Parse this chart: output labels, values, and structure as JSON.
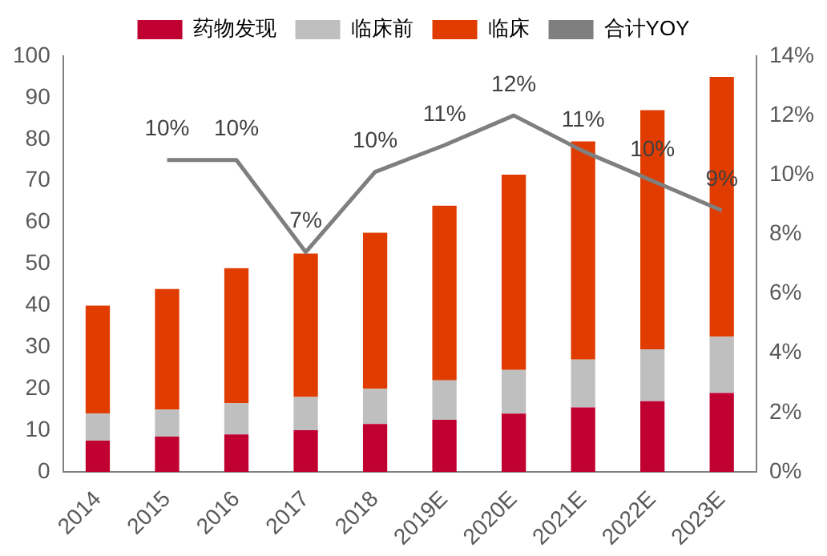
{
  "chart_data": {
    "type": "bar",
    "stacked": true,
    "categories": [
      "2014",
      "2015",
      "2016",
      "2017",
      "2018",
      "2019E",
      "2020E",
      "2021E",
      "2022E",
      "2023E"
    ],
    "series": [
      {
        "name": "药物发现",
        "color": "#c00030",
        "values": [
          7.5,
          8.5,
          9,
          10,
          11.5,
          12.5,
          14,
          15.5,
          17,
          19
        ]
      },
      {
        "name": "临床前",
        "color": "#bfbfbf",
        "values": [
          6.5,
          6.5,
          7.5,
          8,
          8.5,
          9.5,
          10.5,
          11.5,
          12.5,
          13.5
        ]
      },
      {
        "name": "临床",
        "color": "#e03c00",
        "values": [
          26,
          29,
          32.5,
          34.5,
          37.5,
          42,
          47,
          52.5,
          57.5,
          62.5
        ]
      },
      {
        "name": "合计YOY",
        "type": "line",
        "axis": "y2",
        "color": "#7f7f7f",
        "values": [
          null,
          10.5,
          10.5,
          7.4,
          10.1,
          11,
          12,
          10.8,
          9.8,
          8.8
        ],
        "value_labels": [
          null,
          "10%",
          "10%",
          "7%",
          "10%",
          "11%",
          "12%",
          "11%",
          "10%",
          "9%"
        ]
      }
    ],
    "ylim": [
      0,
      100
    ],
    "yticks": [
      0,
      10,
      20,
      30,
      40,
      50,
      60,
      70,
      80,
      90,
      100
    ],
    "y2lim": [
      0,
      14
    ],
    "y2ticks": [
      {
        "value": 0,
        "label": "0%"
      },
      {
        "value": 2,
        "label": "2%"
      },
      {
        "value": 4,
        "label": "4%"
      },
      {
        "value": 6,
        "label": "6%"
      },
      {
        "value": 8,
        "label": "8%"
      },
      {
        "value": 10,
        "label": "10%"
      },
      {
        "value": 12,
        "label": "12%"
      },
      {
        "value": 14,
        "label": "14%"
      }
    ],
    "grid": false,
    "legend": "top",
    "marker": "none"
  }
}
